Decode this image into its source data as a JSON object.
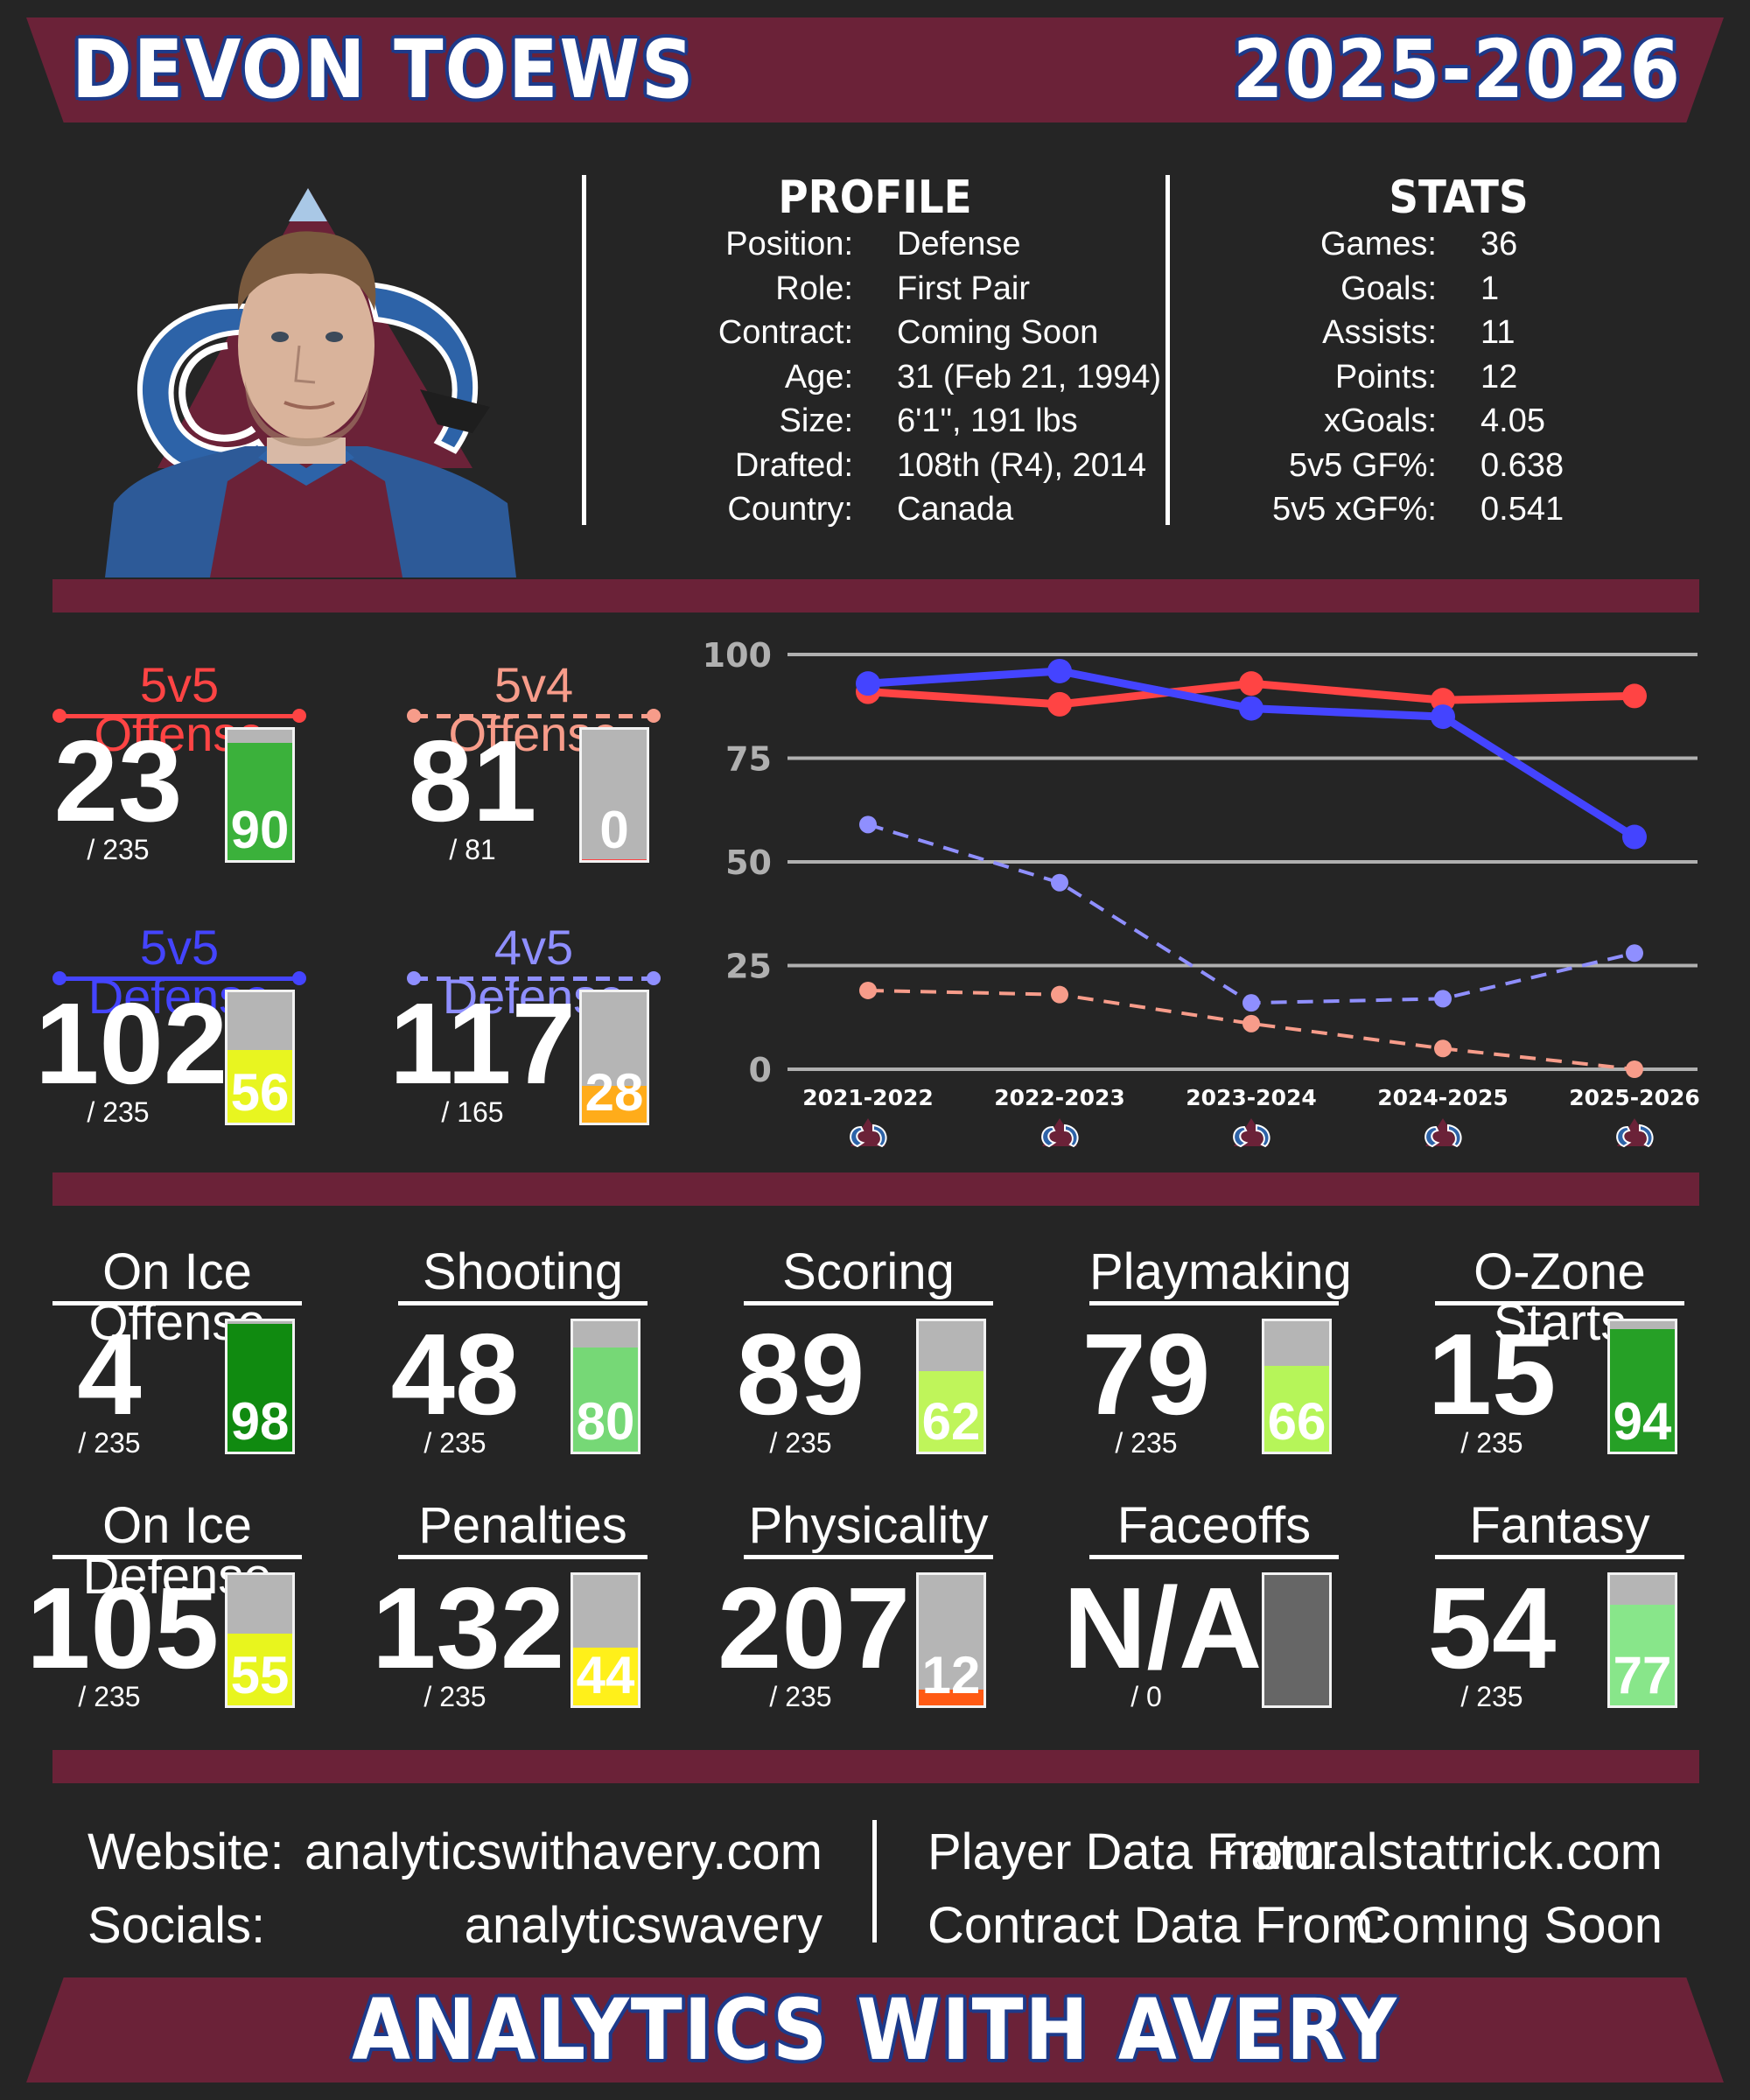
{
  "header": {
    "player_name": "DEVON TOEWS",
    "season": "2025-2026"
  },
  "profile": {
    "heading": "PROFILE",
    "rows": [
      {
        "key": "Position:",
        "value": "Defense"
      },
      {
        "key": "Role:",
        "value": "First Pair"
      },
      {
        "key": "Contract:",
        "value": "Coming Soon"
      },
      {
        "key": "Age:",
        "value": "31 (Feb 21, 1994)"
      },
      {
        "key": "Size:",
        "value": "6'1\", 191 lbs"
      },
      {
        "key": "Drafted:",
        "value": "108th (R4), 2014"
      },
      {
        "key": "Country:",
        "value": "Canada"
      }
    ]
  },
  "stats": {
    "heading": "STATS",
    "rows": [
      {
        "key": "Games:",
        "value": "36"
      },
      {
        "key": "Goals:",
        "value": "1"
      },
      {
        "key": "Assists:",
        "value": "11"
      },
      {
        "key": "Points:",
        "value": "12"
      },
      {
        "key": "xGoals:",
        "value": "4.05"
      },
      {
        "key": "5v5 GF%:",
        "value": "0.638"
      },
      {
        "key": "5v5 xGF%:",
        "value": "0.541"
      }
    ]
  },
  "team_rankings": [
    {
      "label": "5v5 Offense",
      "rank": "23",
      "of": "/ 235",
      "percentile": 90,
      "color": "#ff4444",
      "bar_color": "#3bb13b",
      "dashed": false
    },
    {
      "label": "5v4 Offense",
      "rank": "81",
      "of": "/ 81",
      "percentile": 0,
      "color": "#f79c8a",
      "bar_color": "#ff4444",
      "dashed": true
    },
    {
      "label": "5v5 Defense",
      "rank": "102",
      "of": "/ 235",
      "percentile": 56,
      "color": "#4444ff",
      "bar_color": "#e8f520",
      "dashed": false
    },
    {
      "label": "4v5 Defense",
      "rank": "117",
      "of": "/ 165",
      "percentile": 28,
      "color": "#8f8fff",
      "bar_color": "#ffac1a",
      "dashed": true
    }
  ],
  "chart_data": {
    "type": "line",
    "x": [
      "2021-2022",
      "2022-2023",
      "2023-2024",
      "2024-2025",
      "2025-2026"
    ],
    "ylim": [
      0,
      100
    ],
    "yticks": [
      "0",
      "25",
      "50",
      "75",
      "100"
    ],
    "grid": true,
    "series": [
      {
        "name": "5v5 Offense",
        "values": [
          91,
          88,
          93,
          89,
          90
        ],
        "color": "#ff4444",
        "dashed": false
      },
      {
        "name": "5v5 Defense",
        "values": [
          93,
          96,
          87,
          85,
          56
        ],
        "color": "#4444ff",
        "dashed": false
      },
      {
        "name": "5v4 Offense",
        "values": [
          19,
          18,
          11,
          5,
          0
        ],
        "color": "#f79c8a",
        "dashed": true
      },
      {
        "name": "4v5 Defense",
        "values": [
          59,
          45,
          16,
          17,
          28
        ],
        "color": "#8f8fff",
        "dashed": true
      }
    ]
  },
  "categories": [
    {
      "label": "On Ice Offense",
      "rank": "4",
      "of": "/ 235",
      "percentile": 98,
      "bar_color": "#108a10"
    },
    {
      "label": "Shooting",
      "rank": "48",
      "of": "/ 235",
      "percentile": 80,
      "bar_color": "#76d876"
    },
    {
      "label": "Scoring",
      "rank": "89",
      "of": "/ 235",
      "percentile": 62,
      "bar_color": "#bff55a"
    },
    {
      "label": "Playmaking",
      "rank": "79",
      "of": "/ 235",
      "percentile": 66,
      "bar_color": "#b6f559"
    },
    {
      "label": "O-Zone Starts",
      "rank": "15",
      "of": "/ 235",
      "percentile": 94,
      "bar_color": "#26a026"
    },
    {
      "label": "On Ice Defense",
      "rank": "105",
      "of": "/ 235",
      "percentile": 55,
      "bar_color": "#e8f51e"
    },
    {
      "label": "Penalties",
      "rank": "132",
      "of": "/ 235",
      "percentile": 44,
      "bar_color": "#fff01a"
    },
    {
      "label": "Physicality",
      "rank": "207",
      "of": "/ 235",
      "percentile": 12,
      "bar_color": "#ff5a14"
    },
    {
      "label": "Faceoffs",
      "rank": "N/A",
      "of": "/ 0",
      "percentile": null,
      "bar_color": "#666666"
    },
    {
      "label": "Fantasy",
      "rank": "54",
      "of": "/ 235",
      "percentile": 77,
      "bar_color": "#88e68a"
    }
  ],
  "footer": {
    "website_label": "Website:",
    "website": "analyticswithavery.com",
    "socials_label": "Socials:",
    "socials": "analyticswavery",
    "player_data_label": "Player Data From:",
    "player_data": "naturalstattrick.com",
    "contract_data_label": "Contract Data From:",
    "contract_data": "Coming Soon",
    "brand": "ANALYTICS WITH AVERY"
  }
}
